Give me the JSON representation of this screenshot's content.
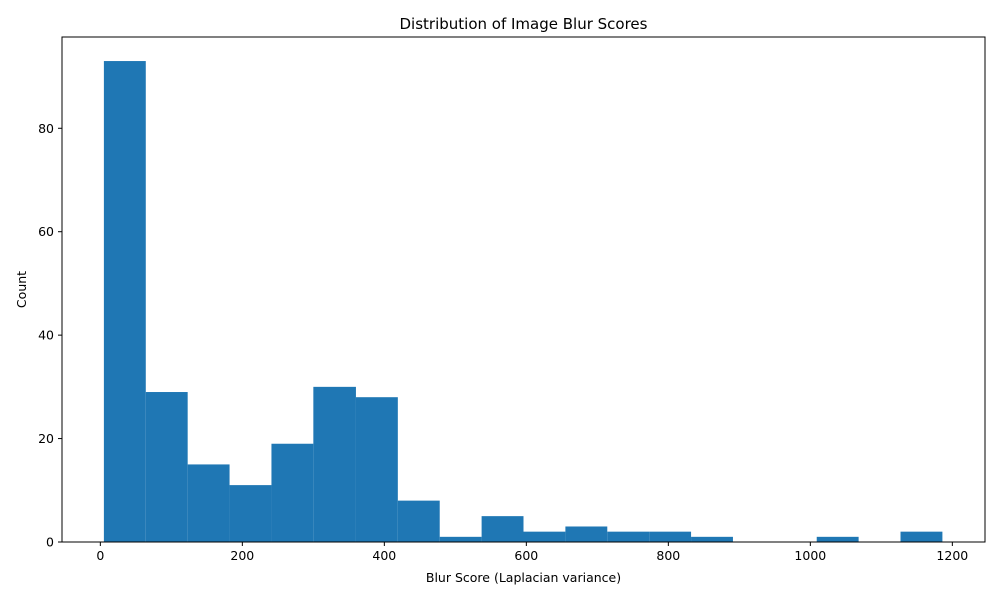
{
  "chart_data": {
    "type": "bar",
    "title": "Distribution of Image Blur Scores",
    "xlabel": "Blur Score (Laplacian variance)",
    "ylabel": "Count",
    "bar_color": "#1f77b4",
    "xlim": [
      -54,
      1246
    ],
    "ylim": [
      0,
      97.65
    ],
    "xticks": [
      0,
      200,
      400,
      600,
      800,
      1000,
      1200
    ],
    "yticks": [
      0,
      20,
      40,
      60,
      80
    ],
    "bins": [
      {
        "x0": 5,
        "x1": 64,
        "count": 93
      },
      {
        "x0": 64,
        "x1": 123,
        "count": 29
      },
      {
        "x0": 123,
        "x1": 182,
        "count": 15
      },
      {
        "x0": 182,
        "x1": 241,
        "count": 11
      },
      {
        "x0": 241,
        "x1": 300,
        "count": 19
      },
      {
        "x0": 300,
        "x1": 360,
        "count": 30
      },
      {
        "x0": 360,
        "x1": 419,
        "count": 28
      },
      {
        "x0": 419,
        "x1": 478,
        "count": 8
      },
      {
        "x0": 478,
        "x1": 537,
        "count": 1
      },
      {
        "x0": 537,
        "x1": 596,
        "count": 5
      },
      {
        "x0": 596,
        "x1": 655,
        "count": 2
      },
      {
        "x0": 655,
        "x1": 714,
        "count": 3
      },
      {
        "x0": 714,
        "x1": 773,
        "count": 2
      },
      {
        "x0": 773,
        "x1": 832,
        "count": 2
      },
      {
        "x0": 832,
        "x1": 891,
        "count": 1
      },
      {
        "x0": 891,
        "x1": 950,
        "count": 0
      },
      {
        "x0": 950,
        "x1": 1009,
        "count": 0
      },
      {
        "x0": 1009,
        "x1": 1068,
        "count": 1
      },
      {
        "x0": 1068,
        "x1": 1127,
        "count": 0
      },
      {
        "x0": 1127,
        "x1": 1186,
        "count": 2
      }
    ],
    "grid": false,
    "legend": "none"
  }
}
